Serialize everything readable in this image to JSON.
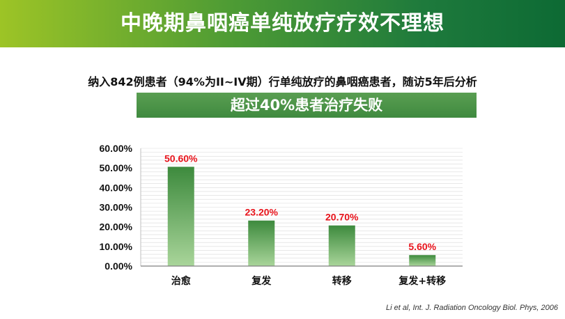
{
  "header": {
    "title": "中晚期鼻咽癌单纯放疗疗效不理想",
    "subtitle": "纳入842例患者（94%为II~IV期）行单纯放疗的鼻咽癌患者，随访5年后分析",
    "highlight": "超过40%患者治疗失败"
  },
  "citation": "Li et al, Int. J. Radiation Oncology Biol. Phys, 2006",
  "colors": {
    "bar_top": "#3d8a3d",
    "bar_bottom": "#a9d59a",
    "label": "#e8141c",
    "grid": "#d9d9d9"
  },
  "chart_data": {
    "type": "bar",
    "categories": [
      "治愈",
      "复发",
      "转移",
      "复发+转移"
    ],
    "values": [
      50.6,
      23.2,
      20.7,
      5.6
    ],
    "data_labels": [
      "50.60%",
      "23.20%",
      "20.70%",
      "5.60%"
    ],
    "y_ticks": [
      "0.00%",
      "10.00%",
      "20.00%",
      "30.00%",
      "40.00%",
      "50.00%",
      "60.00%"
    ],
    "ylim": [
      0,
      60
    ],
    "grid": true,
    "legend": false
  }
}
